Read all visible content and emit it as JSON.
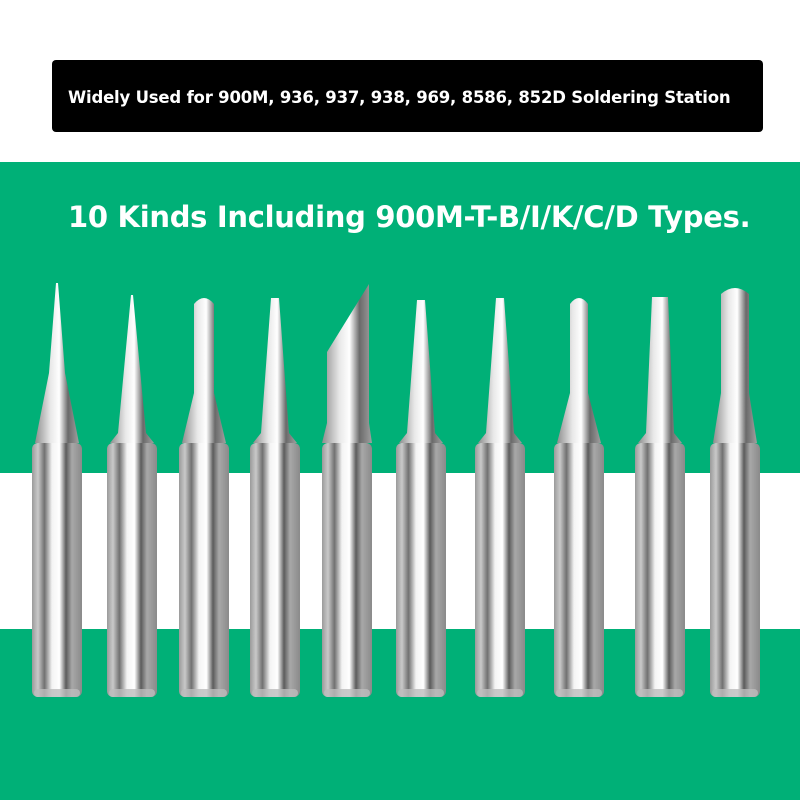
{
  "banner": {
    "text": "Widely Used for 900M, 936, 937, 938, 969, 8586, 852D Soldering Station"
  },
  "headline": {
    "text": "10 Kinds Including 900M-T-B/I/K/C/D Types."
  },
  "colors": {
    "green": "#00b077",
    "banner_bg": "#000000",
    "band": "#ffffff"
  },
  "tips": [
    {
      "shape": "needle"
    },
    {
      "shape": "conical"
    },
    {
      "shape": "bevel-round"
    },
    {
      "shape": "chisel-narrow"
    },
    {
      "shape": "knife"
    },
    {
      "shape": "conical-flat"
    },
    {
      "shape": "chisel-narrow"
    },
    {
      "shape": "bevel-round-small"
    },
    {
      "shape": "chisel"
    },
    {
      "shape": "bevel-round-large"
    }
  ]
}
